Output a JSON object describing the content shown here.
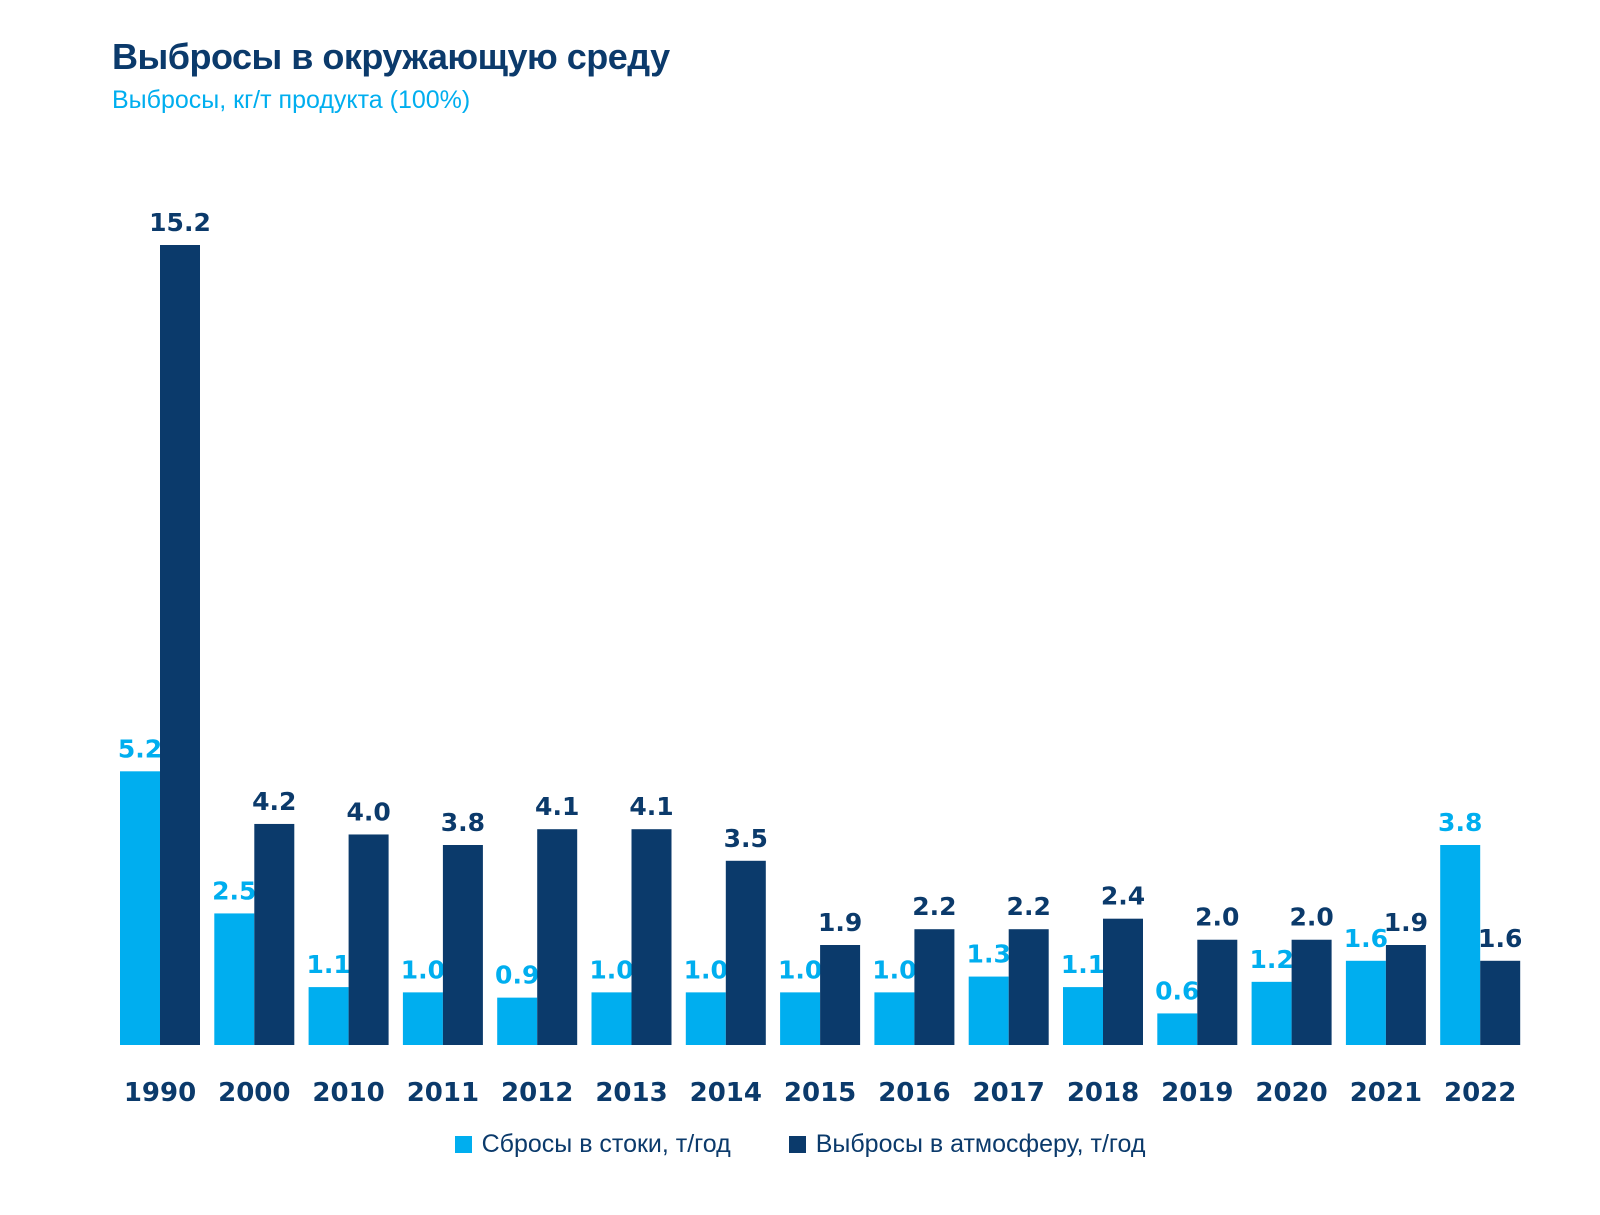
{
  "chart_data": {
    "type": "bar",
    "title": "Выбросы в окружающую среду",
    "subtitle": "Выбросы, кг/т продукта (100%)",
    "categories": [
      "1990",
      "2000",
      "2010",
      "2011",
      "2012",
      "2013",
      "2014",
      "2015",
      "2016",
      "2017",
      "2018",
      "2019",
      "2020",
      "2021",
      "2022"
    ],
    "series": [
      {
        "name": "Сбросы в стоки, т/год",
        "color": "#00aeef",
        "values": [
          5.2,
          2.5,
          1.1,
          1.0,
          0.9,
          1.0,
          1.0,
          1.0,
          1.0,
          1.3,
          1.1,
          0.6,
          1.2,
          1.6,
          3.8
        ],
        "labels": [
          "5.2",
          "2.5",
          "1.1",
          "1.0",
          "0.9",
          "1.0",
          "1.0",
          "1.0",
          "1.0",
          "1.3",
          "1.1",
          "0.6",
          "1.2",
          "1.6",
          "3.8"
        ]
      },
      {
        "name": "Выбросы в атмосферу, т/год",
        "color": "#0b3a6b",
        "values": [
          15.2,
          4.2,
          4.0,
          3.8,
          4.1,
          4.1,
          3.5,
          1.9,
          2.2,
          2.2,
          2.4,
          2.0,
          2.0,
          1.9,
          1.6
        ],
        "labels": [
          "15.2",
          "4.2",
          "4.0",
          "3.8",
          "4.1",
          "4.1",
          "3.5",
          "1.9",
          "2.2",
          "2.2",
          "2.4",
          "2.0",
          "2.0",
          "1.9",
          "1.6"
        ]
      }
    ],
    "ylim": [
      0,
      15.2
    ],
    "grid": false,
    "legend_position": "bottom-center"
  }
}
